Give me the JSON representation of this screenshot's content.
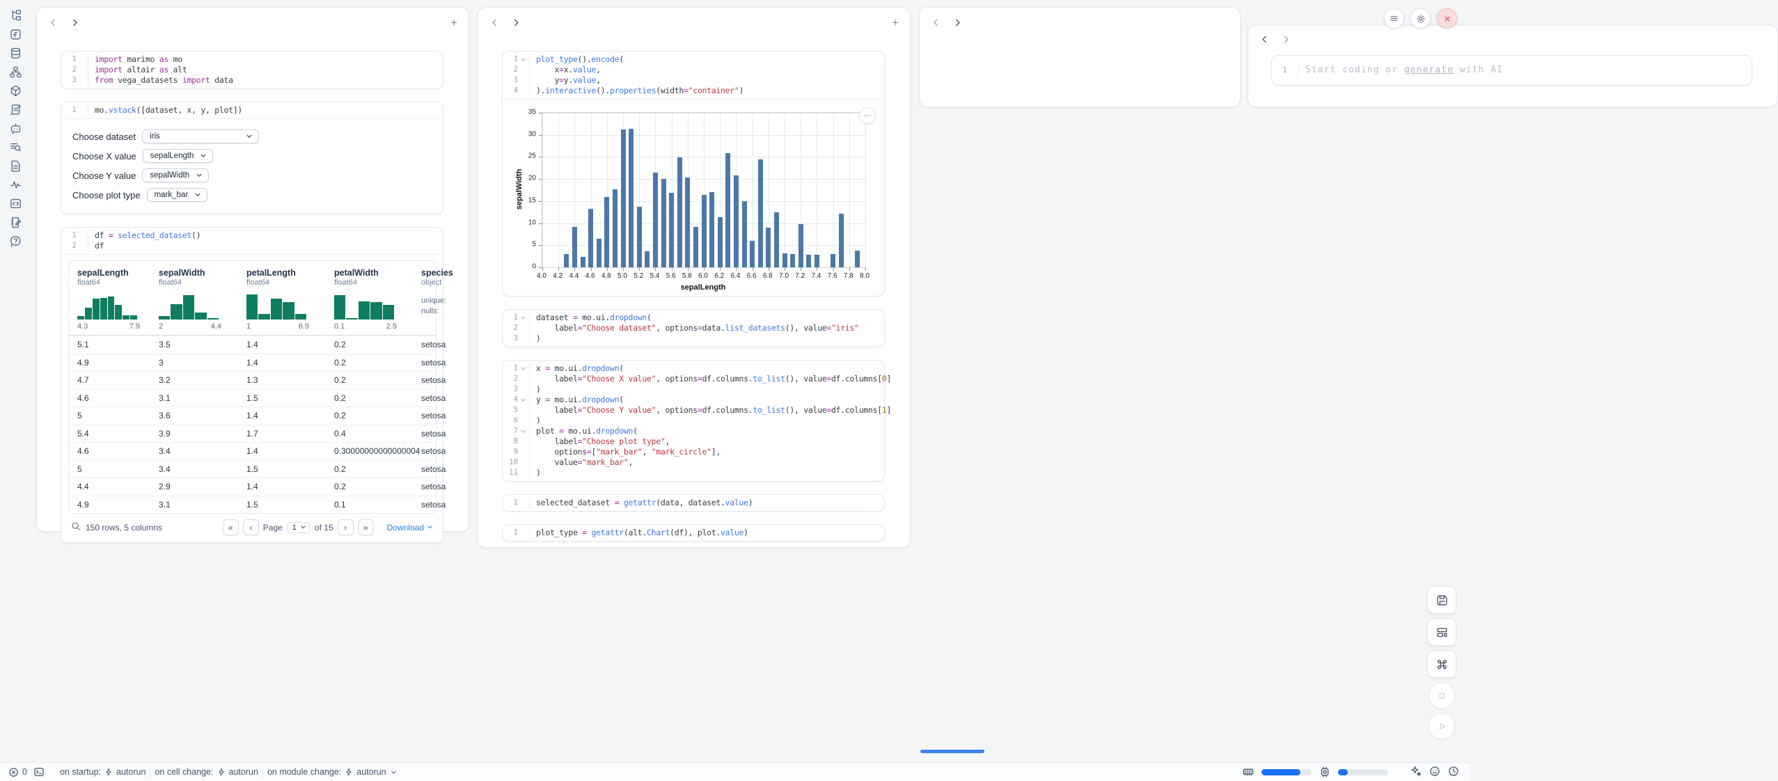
{
  "colors": {
    "accent": "#1c6ef2",
    "bar": "#4c78a8",
    "hist": "#0e7d62",
    "danger": "#d64545"
  },
  "sidebar_icons": [
    "file-tree-icon",
    "function-square-icon",
    "database-icon",
    "dependency-graph-icon",
    "package-cube-icon",
    "logs-scroll-icon",
    "chat-bot-icon",
    "search-list-icon",
    "document-icon",
    "tracing-activity-icon",
    "code-snippets-icon",
    "scratchpad-icon",
    "help-bubble-icon"
  ],
  "panel1_cells": [
    {
      "id": "imports",
      "lines": [
        {
          "n": "1",
          "s": [
            [
              "import",
              "kw"
            ],
            [
              " marimo ",
              "tx"
            ],
            [
              "as",
              "kw"
            ],
            [
              " mo",
              "tx"
            ]
          ]
        },
        {
          "n": "2",
          "s": [
            [
              "import",
              "kw"
            ],
            [
              " altair ",
              "tx"
            ],
            [
              "as",
              "kw"
            ],
            [
              " alt",
              "tx"
            ]
          ]
        },
        {
          "n": "3",
          "s": [
            [
              "from",
              "kw"
            ],
            [
              " vega_datasets ",
              "tx"
            ],
            [
              "import",
              "kw"
            ],
            [
              " data",
              "tx"
            ]
          ]
        }
      ]
    },
    {
      "id": "vstack",
      "lines": [
        {
          "n": "1",
          "s": [
            [
              "mo.",
              "tx"
            ],
            [
              "vstack",
              "fn"
            ],
            [
              "([dataset, x, y, plot])",
              "tx"
            ]
          ]
        }
      ],
      "controls": [
        {
          "label": "Choose dataset",
          "value": "iris",
          "wide": true
        },
        {
          "label": "Choose X value",
          "value": "sepalLength",
          "wide": false
        },
        {
          "label": "Choose Y value",
          "value": "sepalWidth",
          "wide": false
        },
        {
          "label": "Choose plot type",
          "value": "mark_bar",
          "wide": false
        }
      ]
    },
    {
      "id": "dataframe",
      "lines": [
        {
          "n": "1",
          "s": [
            [
              "df ",
              "tx"
            ],
            [
              "=",
              "op"
            ],
            [
              " ",
              "tx"
            ],
            [
              "selected_dataset",
              "fn"
            ],
            [
              "()",
              "tx"
            ]
          ]
        },
        {
          "n": "2",
          "s": [
            [
              "df",
              "tx"
            ]
          ]
        }
      ]
    }
  ],
  "table": {
    "columns": [
      {
        "name": "sepalLength",
        "type": "float64",
        "min": "4.3",
        "max": "7.9",
        "hist": [
          0.13,
          0.45,
          0.8,
          0.82,
          0.86,
          0.55,
          0.16,
          0.15
        ]
      },
      {
        "name": "sepalWidth",
        "type": "float64",
        "min": "2",
        "max": "4.4",
        "hist": [
          0.14,
          0.58,
          0.92,
          0.27,
          0.06
        ]
      },
      {
        "name": "petalLength",
        "type": "float64",
        "min": "1",
        "max": "6.9",
        "hist": [
          0.95,
          0.2,
          0.8,
          0.67,
          0.2
        ]
      },
      {
        "name": "petalWidth",
        "type": "float64",
        "min": "0.1",
        "max": "2.5",
        "hist": [
          0.92,
          0.05,
          0.68,
          0.66,
          0.54
        ]
      },
      {
        "name": "species",
        "type": "object",
        "meta": [
          "unique:",
          "nulls:"
        ]
      }
    ],
    "rows": [
      [
        "5.1",
        "3.5",
        "1.4",
        "0.2",
        "setosa"
      ],
      [
        "4.9",
        "3",
        "1.4",
        "0.2",
        "setosa"
      ],
      [
        "4.7",
        "3.2",
        "1.3",
        "0.2",
        "setosa"
      ],
      [
        "4.6",
        "3.1",
        "1.5",
        "0.2",
        "setosa"
      ],
      [
        "5",
        "3.6",
        "1.4",
        "0.2",
        "setosa"
      ],
      [
        "5.4",
        "3.9",
        "1.7",
        "0.4",
        "setosa"
      ],
      [
        "4.6",
        "3.4",
        "1.4",
        "0.30000000000000004",
        "setosa"
      ],
      [
        "5",
        "3.4",
        "1.5",
        "0.2",
        "setosa"
      ],
      [
        "4.4",
        "2.9",
        "1.4",
        "0.2",
        "setosa"
      ],
      [
        "4.9",
        "3.1",
        "1.5",
        "0.1",
        "setosa"
      ]
    ],
    "summary": "150 rows, 5 columns",
    "page_label": "Page",
    "page_value": "1",
    "of_label": "of 15",
    "download_label": "Download"
  },
  "panel2_cells": [
    {
      "id": "chart-code",
      "lines": [
        {
          "n": "1",
          "fold": true,
          "s": [
            [
              "plot_type",
              "fn"
            ],
            [
              "().",
              "tx"
            ],
            [
              "encode",
              "fn"
            ],
            [
              "(",
              "tx"
            ]
          ]
        },
        {
          "n": "2",
          "s": [
            [
              "    x",
              "tx"
            ],
            [
              "=",
              "op"
            ],
            [
              "x.",
              "tx"
            ],
            [
              "value",
              "fn"
            ],
            [
              ",",
              "tx"
            ]
          ]
        },
        {
          "n": "3",
          "s": [
            [
              "    y",
              "tx"
            ],
            [
              "=",
              "op"
            ],
            [
              "y.",
              "tx"
            ],
            [
              "value",
              "fn"
            ],
            [
              ",",
              "tx"
            ]
          ]
        },
        {
          "n": "4",
          "s": [
            [
              ").",
              "tx"
            ],
            [
              "interactive",
              "fn"
            ],
            [
              "().",
              "tx"
            ],
            [
              "properties",
              "fn"
            ],
            [
              "(width",
              "tx"
            ],
            [
              "=",
              "op"
            ],
            [
              "\"container\"",
              "str"
            ],
            [
              ")",
              "tx"
            ]
          ]
        }
      ]
    },
    {
      "id": "dataset-code",
      "lines": [
        {
          "n": "1",
          "fold": true,
          "s": [
            [
              "dataset ",
              "tx"
            ],
            [
              "=",
              "op"
            ],
            [
              " mo.ui.",
              "tx"
            ],
            [
              "dropdown",
              "fn"
            ],
            [
              "(",
              "tx"
            ]
          ]
        },
        {
          "n": "2",
          "s": [
            [
              "    label",
              "tx"
            ],
            [
              "=",
              "op"
            ],
            [
              "\"Choose dataset\"",
              "str"
            ],
            [
              ", options",
              "tx"
            ],
            [
              "=",
              "op"
            ],
            [
              "data.",
              "tx"
            ],
            [
              "list_datasets",
              "fn"
            ],
            [
              "(), value",
              "tx"
            ],
            [
              "=",
              "op"
            ],
            [
              "\"iris\"",
              "str"
            ]
          ]
        },
        {
          "n": "3",
          "s": [
            [
              ")",
              "tx"
            ]
          ]
        }
      ]
    },
    {
      "id": "controls-code",
      "lines": [
        {
          "n": "1",
          "fold": true,
          "s": [
            [
              "x ",
              "tx"
            ],
            [
              "=",
              "op"
            ],
            [
              " mo.ui.",
              "tx"
            ],
            [
              "dropdown",
              "fn"
            ],
            [
              "(",
              "tx"
            ]
          ]
        },
        {
          "n": "2",
          "s": [
            [
              "    label",
              "tx"
            ],
            [
              "=",
              "op"
            ],
            [
              "\"Choose X value\"",
              "str"
            ],
            [
              ", options",
              "tx"
            ],
            [
              "=",
              "op"
            ],
            [
              "df.columns.",
              "tx"
            ],
            [
              "to_list",
              "fn"
            ],
            [
              "(), value",
              "tx"
            ],
            [
              "=",
              "op"
            ],
            [
              "df.columns[",
              "tx"
            ],
            [
              "0",
              "num"
            ],
            [
              "]",
              "tx"
            ]
          ]
        },
        {
          "n": "3",
          "s": [
            [
              ")",
              "tx"
            ]
          ]
        },
        {
          "n": "4",
          "fold": true,
          "s": [
            [
              "y ",
              "tx"
            ],
            [
              "=",
              "op"
            ],
            [
              " mo.ui.",
              "tx"
            ],
            [
              "dropdown",
              "fn"
            ],
            [
              "(",
              "tx"
            ]
          ]
        },
        {
          "n": "5",
          "s": [
            [
              "    label",
              "tx"
            ],
            [
              "=",
              "op"
            ],
            [
              "\"Choose Y value\"",
              "str"
            ],
            [
              ", options",
              "tx"
            ],
            [
              "=",
              "op"
            ],
            [
              "df.columns.",
              "tx"
            ],
            [
              "to_list",
              "fn"
            ],
            [
              "(), value",
              "tx"
            ],
            [
              "=",
              "op"
            ],
            [
              "df.columns[",
              "tx"
            ],
            [
              "1",
              "num"
            ],
            [
              "]",
              "tx"
            ]
          ]
        },
        {
          "n": "6",
          "s": [
            [
              ")",
              "tx"
            ]
          ]
        },
        {
          "n": "7",
          "fold": true,
          "s": [
            [
              "plot ",
              "tx"
            ],
            [
              "=",
              "op"
            ],
            [
              " mo.ui.",
              "tx"
            ],
            [
              "dropdown",
              "fn"
            ],
            [
              "(",
              "tx"
            ]
          ]
        },
        {
          "n": "8",
          "s": [
            [
              "    label",
              "tx"
            ],
            [
              "=",
              "op"
            ],
            [
              "\"Choose plot type\"",
              "str"
            ],
            [
              ",",
              "tx"
            ]
          ]
        },
        {
          "n": "9",
          "s": [
            [
              "    options",
              "tx"
            ],
            [
              "=",
              "op"
            ],
            [
              "[",
              "tx"
            ],
            [
              "\"mark_bar\"",
              "str"
            ],
            [
              ", ",
              "tx"
            ],
            [
              "\"mark_circle\"",
              "str"
            ],
            [
              "],",
              "tx"
            ]
          ]
        },
        {
          "n": "10",
          "s": [
            [
              "    value",
              "tx"
            ],
            [
              "=",
              "op"
            ],
            [
              "\"mark_bar\"",
              "str"
            ],
            [
              ",",
              "tx"
            ]
          ]
        },
        {
          "n": "11",
          "s": [
            [
              ")",
              "tx"
            ]
          ]
        }
      ]
    },
    {
      "id": "selected-code",
      "lines": [
        {
          "n": "1",
          "s": [
            [
              "selected_dataset ",
              "tx"
            ],
            [
              "=",
              "op"
            ],
            [
              " ",
              "tx"
            ],
            [
              "getattr",
              "fn"
            ],
            [
              "(data, dataset.",
              "tx"
            ],
            [
              "value",
              "fn"
            ],
            [
              ")",
              "tx"
            ]
          ]
        }
      ]
    },
    {
      "id": "plottype-code",
      "lines": [
        {
          "n": "1",
          "s": [
            [
              "plot_type ",
              "tx"
            ],
            [
              "=",
              "op"
            ],
            [
              " ",
              "tx"
            ],
            [
              "getattr",
              "fn"
            ],
            [
              "(alt.",
              "tx"
            ],
            [
              "Chart",
              "fn"
            ],
            [
              "(df), plot.",
              "tx"
            ],
            [
              "value",
              "fn"
            ],
            [
              ")",
              "tx"
            ]
          ]
        }
      ]
    }
  ],
  "panel4": {
    "lines": [
      {
        "n": "1",
        "s": [
          [
            "Start coding or ",
            "ph"
          ],
          [
            "generate",
            "phl"
          ],
          [
            " with AI",
            "ph"
          ]
        ]
      }
    ]
  },
  "chart_data": {
    "type": "bar",
    "title": "",
    "xlabel": "sepalLength",
    "ylabel": "sepalWidth",
    "aggregate": "sum of sepalWidth per sepalLength (iris)",
    "x": [
      4.3,
      4.4,
      4.5,
      4.6,
      4.7,
      4.8,
      4.9,
      5.0,
      5.1,
      5.2,
      5.3,
      5.4,
      5.5,
      5.6,
      5.7,
      5.8,
      5.9,
      6.0,
      6.1,
      6.2,
      6.3,
      6.4,
      6.5,
      6.6,
      6.7,
      6.8,
      6.9,
      7.0,
      7.1,
      7.2,
      7.3,
      7.4,
      7.6,
      7.7,
      7.9
    ],
    "values": [
      3.0,
      9.1,
      2.3,
      13.3,
      6.4,
      15.9,
      17.7,
      31.2,
      31.4,
      13.7,
      3.7,
      21.4,
      20.0,
      16.9,
      24.9,
      20.3,
      9.2,
      16.4,
      17.1,
      11.3,
      25.8,
      20.8,
      15.0,
      6.0,
      24.5,
      9.0,
      12.5,
      3.2,
      3.0,
      9.8,
      2.9,
      2.8,
      3.0,
      12.2,
      3.8
    ],
    "xlim": [
      4.0,
      8.0
    ],
    "ylim": [
      0,
      35
    ],
    "x_ticks": [
      4.0,
      4.2,
      4.4,
      4.6,
      4.8,
      5.0,
      5.2,
      5.4,
      5.6,
      5.8,
      6.0,
      6.2,
      6.4,
      6.6,
      6.8,
      7.0,
      7.2,
      7.4,
      7.6,
      7.8,
      8.0
    ],
    "y_ticks": [
      0,
      5,
      10,
      15,
      20,
      25,
      30,
      35
    ],
    "bar_color": "#4c78a8",
    "grid": true,
    "legend": false
  },
  "statusbar": {
    "error_count": "0",
    "run_items": [
      {
        "label": "on startup:",
        "value": "autorun",
        "chevron": false
      },
      {
        "label": "on cell change:",
        "value": "autorun",
        "chevron": false
      },
      {
        "label": "on module change:",
        "value": "autorun",
        "chevron": true
      }
    ],
    "ram_pct": 78,
    "cpu_pct": 20
  }
}
